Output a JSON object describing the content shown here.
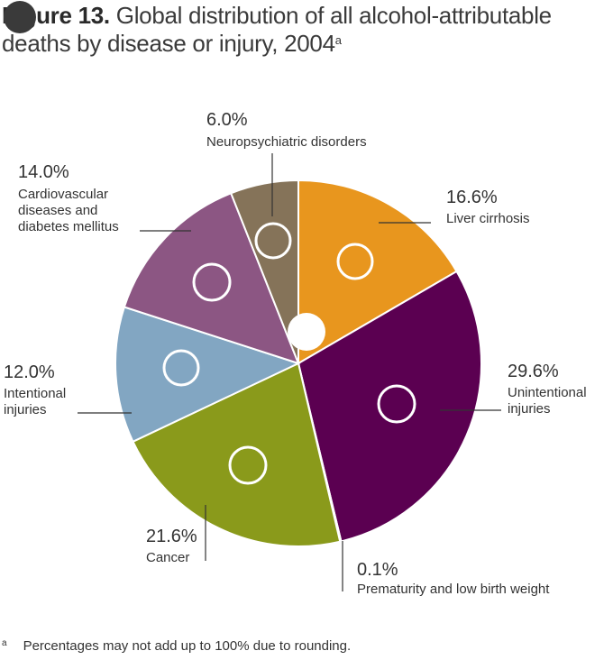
{
  "header": {
    "figure_label": "Figure 13.",
    "title_text": "Global distribution of all alcohol-attributable deaths by disease or injury, 2004",
    "title_sup": "a"
  },
  "footnote": {
    "mark": "a",
    "text": "Percentages may not add up to 100% due to rounding."
  },
  "chart_data": {
    "type": "pie",
    "title": "Global distribution of all alcohol-attributable deaths by disease or injury, 2004",
    "start_angle_deg": 0,
    "direction": "clockwise",
    "slices": [
      {
        "label": "Liver cirrhosis",
        "value": 16.6,
        "pct_label": "16.6%",
        "color": "#E8961E"
      },
      {
        "label": "Unintentional injuries",
        "value": 29.6,
        "pct_label": "29.6%",
        "color": "#5B0051"
      },
      {
        "label": "Prematurity and low birth weight",
        "value": 0.1,
        "pct_label": "0.1%",
        "color": "#9a9a9a"
      },
      {
        "label": "Cancer",
        "value": 21.6,
        "pct_label": "21.6%",
        "color": "#8A9A1B"
      },
      {
        "label": "Intentional injuries",
        "value": 12.0,
        "pct_label": "12.0%",
        "color": "#82A6C2"
      },
      {
        "label": "Cardiovascular diseases and diabetes mellitus",
        "value": 14.0,
        "pct_label": "14.0%",
        "color": "#8C5683"
      },
      {
        "label": "Neuropsychiatric disorders",
        "value": 6.0,
        "pct_label": "6.0%",
        "color": "#857359"
      }
    ]
  }
}
